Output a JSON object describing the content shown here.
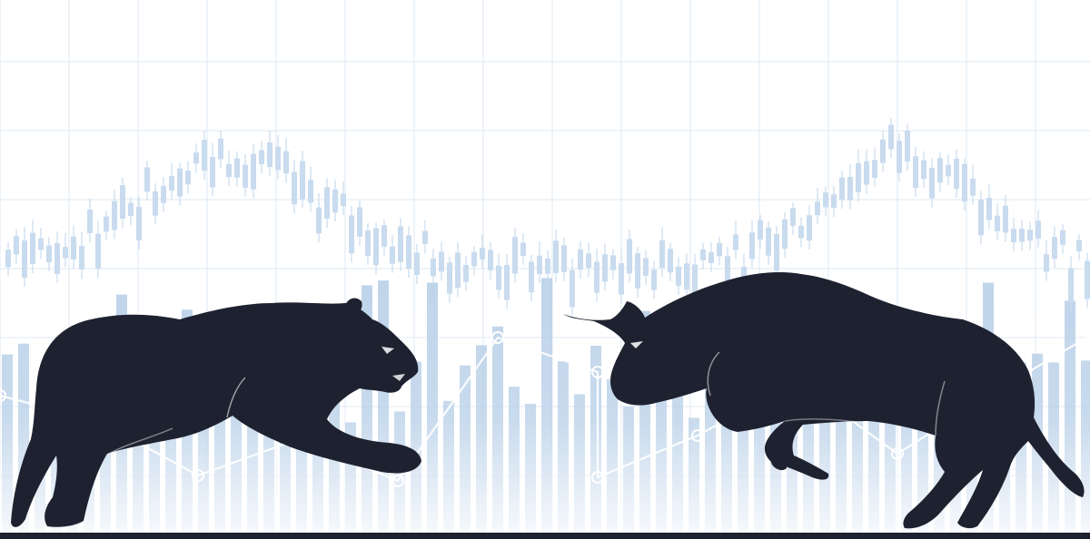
{
  "scene": {
    "colors": {
      "background": "#ffffff",
      "grid": "#dde8f3",
      "candle_light": "#c9dbee",
      "candle_mid": "#aac6e3",
      "line": "#ffffff",
      "silhouette": "#1e2230",
      "baseline": "#1e2230"
    },
    "icons": [
      "bear-silhouette-icon",
      "bull-silhouette-icon",
      "candlestick-chart-icon"
    ]
  }
}
